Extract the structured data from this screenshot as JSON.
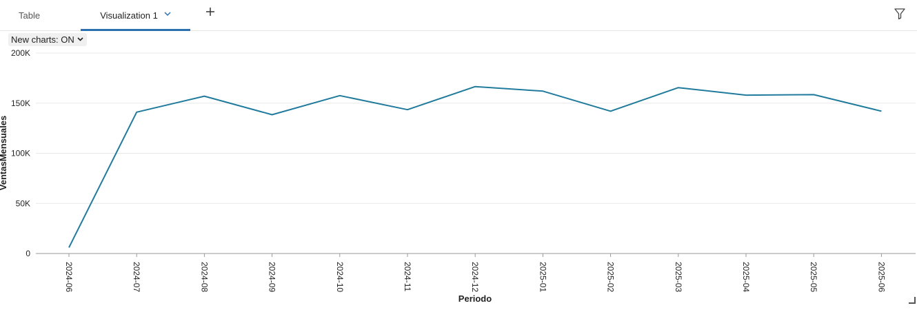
{
  "tabs": [
    {
      "label": "Table"
    },
    {
      "label": "Visualization 1"
    }
  ],
  "toolbar": {
    "new_charts_label": "New charts: ON"
  },
  "colors": {
    "line": "#1f7a9c",
    "active_tab": "#2a6fb0"
  },
  "chart_data": {
    "type": "line",
    "xlabel": "Periodo",
    "ylabel": "VentasMensuales",
    "ylim": [
      0,
      200000
    ],
    "yticks": [
      {
        "value": 0,
        "label": "0"
      },
      {
        "value": 50000,
        "label": "50K"
      },
      {
        "value": 100000,
        "label": "100K"
      },
      {
        "value": 150000,
        "label": "150K"
      },
      {
        "value": 200000,
        "label": "200K"
      }
    ],
    "categories": [
      "2024-06",
      "2024-07",
      "2024-08",
      "2024-09",
      "2024-10",
      "2024-11",
      "2024-12",
      "2025-01",
      "2025-02",
      "2025-03",
      "2025-04",
      "2025-05",
      "2025-06"
    ],
    "series": [
      {
        "values": [
          6000,
          141000,
          157000,
          138500,
          157500,
          143500,
          166500,
          162000,
          142000,
          165500,
          158000,
          158500,
          142000
        ]
      }
    ],
    "grid": true
  }
}
